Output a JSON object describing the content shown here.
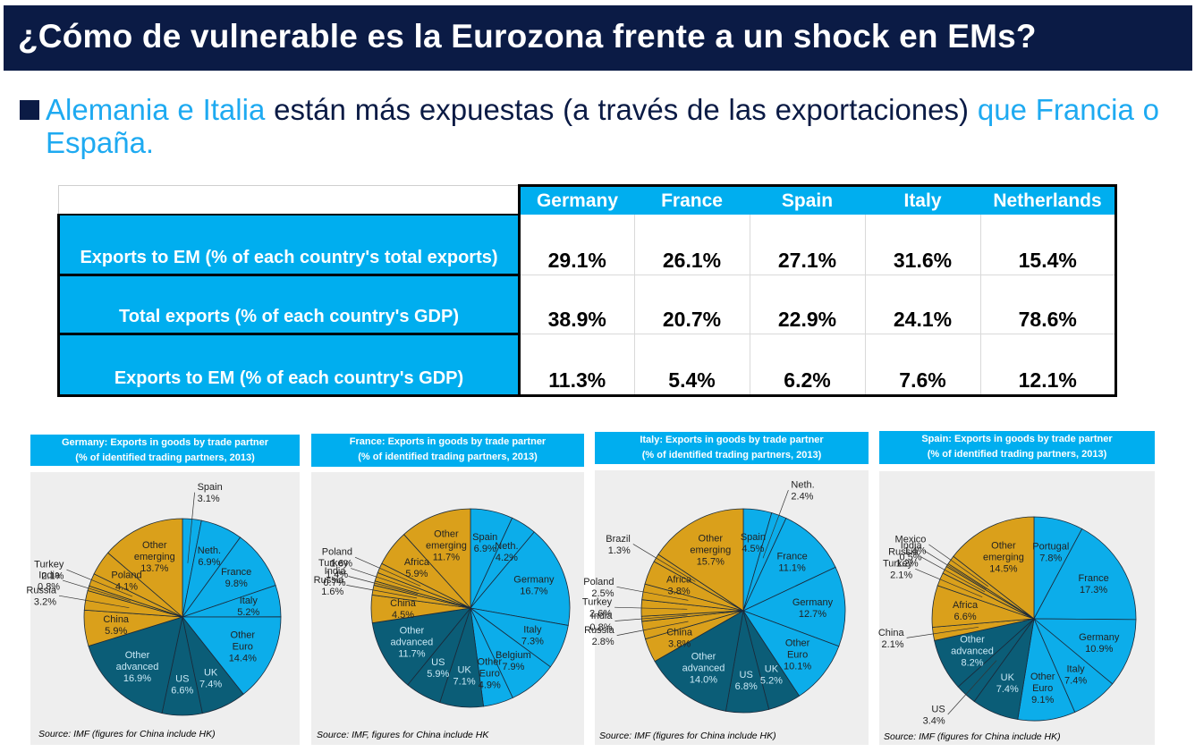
{
  "title": "¿Cómo de vulnerable es la Eurozona frente a un shock en EMs?",
  "bullet": {
    "part1": "Alemania e Italia",
    "part2": " están más expuestas (a través de las exportaciones) ",
    "part3": "que Francia o España."
  },
  "colors": {
    "title_bg": "#0b1b45",
    "accent": "#00aeef",
    "euro": "#0cadea",
    "emerging": "#daa01b",
    "advanced": "#0b5d77"
  },
  "table": {
    "columns": [
      "Germany",
      "France",
      "Spain",
      "Italy",
      "Netherlands"
    ],
    "rows": [
      {
        "label": "Exports to EM (% of each country's total exports)",
        "values": [
          "29.1%",
          "26.1%",
          "27.1%",
          "31.6%",
          "15.4%"
        ]
      },
      {
        "label": "Total exports (% of each country's GDP)",
        "values": [
          "38.9%",
          "20.7%",
          "22.9%",
          "24.1%",
          "78.6%"
        ]
      },
      {
        "label": "Exports to EM (% of each country's GDP)",
        "values": [
          "11.3%",
          "5.4%",
          "6.2%",
          "7.6%",
          "12.1%"
        ]
      }
    ]
  },
  "chart_data": [
    {
      "type": "pie",
      "title": "Germany: Exports in goods by trade partner",
      "subtitle": "(% of identified trading partners, 2013)",
      "source": "Source: IMF (figures for China include HK)",
      "slices": [
        {
          "label": "Spain",
          "value": 3.1,
          "text": "3.1%",
          "group": "euro"
        },
        {
          "label": "Neth.",
          "value": 6.9,
          "text": "6.9%",
          "group": "euro"
        },
        {
          "label": "France",
          "value": 9.8,
          "text": "9.8%",
          "group": "euro"
        },
        {
          "label": "Italy",
          "value": 5.2,
          "text": "5.2%",
          "group": "euro"
        },
        {
          "label": "Other Euro",
          "value": 14.4,
          "text": "14.4%",
          "group": "euro"
        },
        {
          "label": "UK",
          "value": 7.4,
          "text": "7.4%",
          "group": "advanced"
        },
        {
          "label": "US",
          "value": 6.6,
          "text": "6.6%",
          "group": "advanced"
        },
        {
          "label": "Other advanced",
          "value": 16.9,
          "text": "16.9%",
          "group": "advanced"
        },
        {
          "label": "China",
          "value": 5.9,
          "text": "5.9%",
          "group": "emerging"
        },
        {
          "label": "Russia",
          "value": 3.2,
          "text": "3.2%",
          "group": "emerging"
        },
        {
          "label": "India",
          "value": 0.8,
          "text": "0.8%",
          "group": "emerging"
        },
        {
          "label": "Turkey",
          "value": 2.1,
          "text": "2.1%",
          "group": "emerging"
        },
        {
          "label": "Poland",
          "value": 4.1,
          "text": "4.1%",
          "group": "emerging"
        },
        {
          "label": "Other emerging",
          "value": 13.7,
          "text": "13.7%",
          "group": "emerging"
        }
      ]
    },
    {
      "type": "pie",
      "title": "France: Exports in goods by trade partner",
      "subtitle": "(% of identified trading partners, 2013)",
      "source": "Source: IMF, figures for China include HK",
      "slices": [
        {
          "label": "Spain",
          "value": 6.9,
          "text": "6.9%",
          "group": "euro"
        },
        {
          "label": "Neth.",
          "value": 4.2,
          "text": "4.2%",
          "group": "euro"
        },
        {
          "label": "Germany",
          "value": 16.7,
          "text": "16.7%",
          "group": "euro"
        },
        {
          "label": "Italy",
          "value": 7.3,
          "text": "7.3%",
          "group": "euro"
        },
        {
          "label": "Belgium",
          "value": 7.9,
          "text": "7.9%",
          "group": "euro"
        },
        {
          "label": "Other Euro",
          "value": 4.9,
          "text": "4.9%",
          "group": "euro"
        },
        {
          "label": "UK",
          "value": 7.1,
          "text": "7.1%",
          "group": "advanced"
        },
        {
          "label": "US",
          "value": 5.9,
          "text": "5.9%",
          "group": "advanced"
        },
        {
          "label": "Other advanced",
          "value": 11.7,
          "text": "11.7%",
          "group": "advanced"
        },
        {
          "label": "China",
          "value": 4.5,
          "text": "4.5%",
          "group": "emerging"
        },
        {
          "label": "Russia",
          "value": 1.6,
          "text": "1.6%",
          "group": "emerging"
        },
        {
          "label": "India",
          "value": 0.7,
          "text": "0.7%",
          "group": "emerging"
        },
        {
          "label": "Turkey",
          "value": 1.4,
          "text": "1.4%",
          "group": "emerging"
        },
        {
          "label": "Poland",
          "value": 1.6,
          "text": "1.6%",
          "group": "emerging"
        },
        {
          "label": "Africa",
          "value": 5.9,
          "text": "5.9%",
          "group": "emerging"
        },
        {
          "label": "Other emerging",
          "value": 11.7,
          "text": "11.7%",
          "group": "emerging"
        }
      ]
    },
    {
      "type": "pie",
      "title": "Italy: Exports in goods by trade partner",
      "subtitle": "(% of identified trading partners, 2013)",
      "source": "Source: IMF (figures for China include HK)",
      "slices": [
        {
          "label": "Spain",
          "value": 4.5,
          "text": "4.5%",
          "group": "euro"
        },
        {
          "label": "Neth.",
          "value": 2.4,
          "text": "2.4%",
          "group": "euro"
        },
        {
          "label": "France",
          "value": 11.1,
          "text": "11.1%",
          "group": "euro"
        },
        {
          "label": "Germany",
          "value": 12.7,
          "text": "12.7%",
          "group": "euro"
        },
        {
          "label": "Other Euro",
          "value": 10.1,
          "text": "10.1%",
          "group": "euro"
        },
        {
          "label": "UK",
          "value": 5.2,
          "text": "5.2%",
          "group": "advanced"
        },
        {
          "label": "US",
          "value": 6.8,
          "text": "6.8%",
          "group": "advanced"
        },
        {
          "label": "Other advanced",
          "value": 14.0,
          "text": "14.0%",
          "group": "advanced"
        },
        {
          "label": "China",
          "value": 3.8,
          "text": "3.8%",
          "group": "emerging"
        },
        {
          "label": "Russia",
          "value": 2.8,
          "text": "2.8%",
          "group": "emerging"
        },
        {
          "label": "India",
          "value": 0.8,
          "text": "0.8%",
          "group": "emerging"
        },
        {
          "label": "Turkey",
          "value": 2.6,
          "text": "2.6%",
          "group": "emerging"
        },
        {
          "label": "Poland",
          "value": 2.5,
          "text": "2.5%",
          "group": "emerging"
        },
        {
          "label": "Africa",
          "value": 3.8,
          "text": "3.8%",
          "group": "emerging"
        },
        {
          "label": "Brazil",
          "value": 1.3,
          "text": "1.3%",
          "group": "emerging"
        },
        {
          "label": "Other emerging",
          "value": 15.7,
          "text": "15.7%",
          "group": "emerging"
        }
      ]
    },
    {
      "type": "pie",
      "title": "Spain: Exports in goods by trade partner",
      "subtitle": "(% of identified trading partners, 2013)",
      "source": "Source: IMF (figures for China include HK)",
      "slices": [
        {
          "label": "Portugal",
          "value": 7.8,
          "text": "7.8%",
          "group": "euro"
        },
        {
          "label": "France",
          "value": 17.3,
          "text": "17.3%",
          "group": "euro"
        },
        {
          "label": "Germany",
          "value": 10.9,
          "text": "10.9%",
          "group": "euro"
        },
        {
          "label": "Italy",
          "value": 7.4,
          "text": "7.4%",
          "group": "euro"
        },
        {
          "label": "Other Euro",
          "value": 9.1,
          "text": "9.1%",
          "group": "euro"
        },
        {
          "label": "UK",
          "value": 7.4,
          "text": "7.4%",
          "group": "advanced"
        },
        {
          "label": "US",
          "value": 3.4,
          "text": "3.4%",
          "group": "advanced"
        },
        {
          "label": "Other advanced",
          "value": 8.2,
          "text": "8.2%",
          "group": "advanced"
        },
        {
          "label": "China",
          "value": 2.1,
          "text": "2.1%",
          "group": "emerging"
        },
        {
          "label": "Africa",
          "value": 6.6,
          "text": "6.6%",
          "group": "emerging"
        },
        {
          "label": "Turkey",
          "value": 2.1,
          "text": "2.1%",
          "group": "emerging"
        },
        {
          "label": "Russia",
          "value": 1.2,
          "text": "1.2%",
          "group": "emerging"
        },
        {
          "label": "India",
          "value": 0.5,
          "text": "0.5%",
          "group": "emerging"
        },
        {
          "label": "Mexico",
          "value": 1.4,
          "text": "1.4%",
          "group": "emerging"
        },
        {
          "label": "Other emerging",
          "value": 14.5,
          "text": "14.5%",
          "group": "emerging"
        }
      ]
    }
  ]
}
